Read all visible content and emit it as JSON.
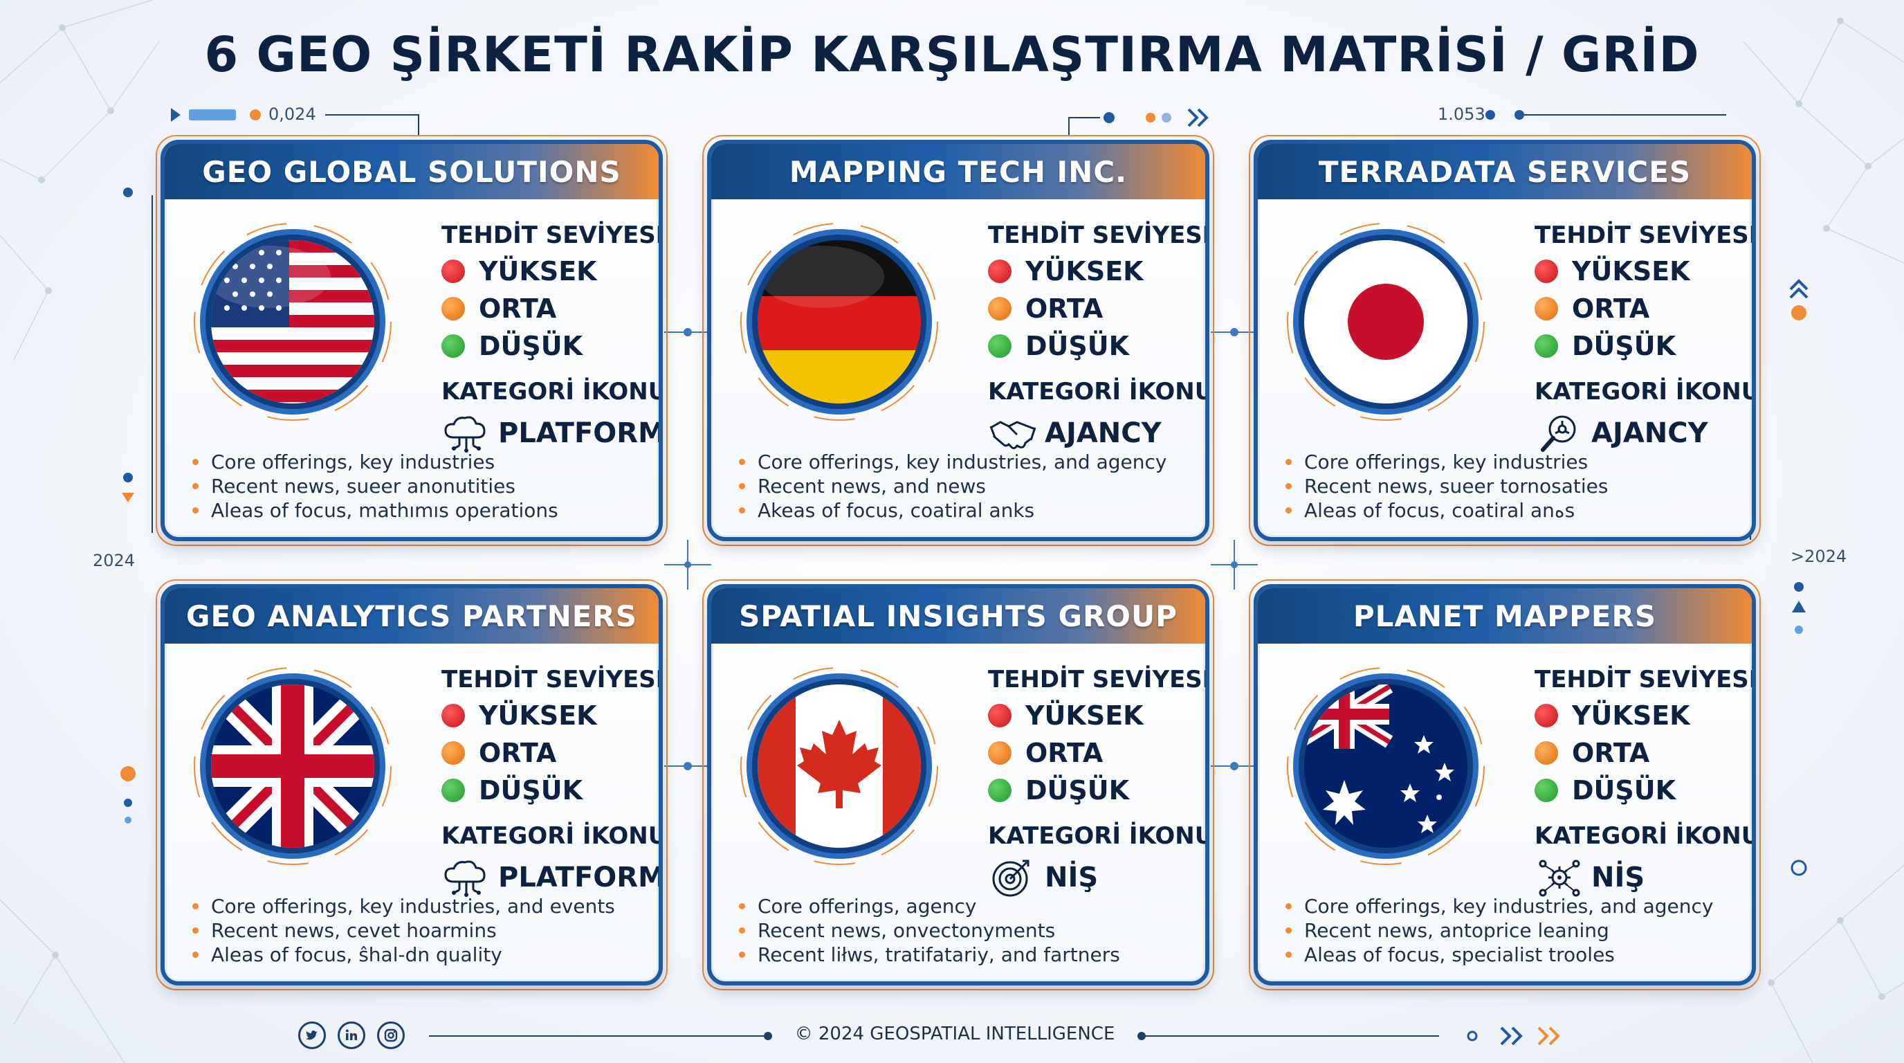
{
  "title": "6 GEO ŞİRKETİ RAKİP KARŞILAŞTIRMA MATRİSİ / GRİD",
  "decor": {
    "top_left_value": "0,024",
    "top_right_value": "1.053",
    "left_year": "2024",
    "right_year": ">2024"
  },
  "labels": {
    "threat": "TEHDİT SEVİYESİ",
    "high": "YÜKSEK",
    "medium": "ORTA",
    "low": "DÜŞÜK",
    "category": "KATEGORİ İKONU"
  },
  "companies": [
    {
      "name": "GEO GLOBAL SOLUTIONS",
      "flag": "usa-flag",
      "category": "PLATFORM",
      "category_icon": "cloud-network-icon",
      "bullets": [
        "Core offerings, key industries",
        "Recent news, sueer anonutities",
        "Aleas of focus, mathımıs operations"
      ]
    },
    {
      "name": "MAPPING TECH INC.",
      "flag": "germany-flag",
      "category": "AJANCY",
      "category_icon": "handshake-icon",
      "bullets": [
        "Core offerings, key industries, and agency",
        "Recent news, and news",
        "Akeas of focus, coatiral anks"
      ]
    },
    {
      "name": "TERRADATA SERVICES",
      "flag": "japan-flag",
      "category": "AJANCY",
      "category_icon": "magnifier-icon",
      "bullets": [
        "Core offerings, key industries",
        "Recent news, sueer tornosaties",
        "Aleas of focus, coatiral anهs"
      ]
    },
    {
      "name": "GEO ANALYTICS PARTNERS",
      "flag": "uk-flag",
      "category": "PLATFORM",
      "category_icon": "cloud-network-icon",
      "bullets": [
        "Core offerings, key industries, and events",
        "Recent news, cevet hoarmins",
        "Aleas of focus, ŝhal-dn quality"
      ]
    },
    {
      "name": "SPATIAL INSIGHTS GROUP",
      "flag": "canada-flag",
      "category": "NİŞ",
      "category_icon": "target-icon",
      "bullets": [
        "Core offerings, agency",
        "Recent news, onvectonyments",
        "Recent liłws, tratifatariy, and fartners"
      ]
    },
    {
      "name": "PLANET MAPPERS",
      "flag": "australia-flag",
      "category": "NİŞ",
      "category_icon": "network-gear-icon",
      "bullets": [
        "Core offerings, key industries, and agency",
        "Recent news, antoprice leaning",
        "Aleas of focus, specialist trooles"
      ]
    }
  ],
  "footer": {
    "copyright": "© 2024 GEOSPATIAL INTELLIGENCE",
    "social": [
      "twitter-icon",
      "linkedin-icon",
      "instagram-icon"
    ]
  },
  "colors": {
    "navy": "#0d2240",
    "blue": "#1f5a9e",
    "orange": "#ef8a35",
    "red": "#d41b24",
    "green": "#2aa837"
  }
}
